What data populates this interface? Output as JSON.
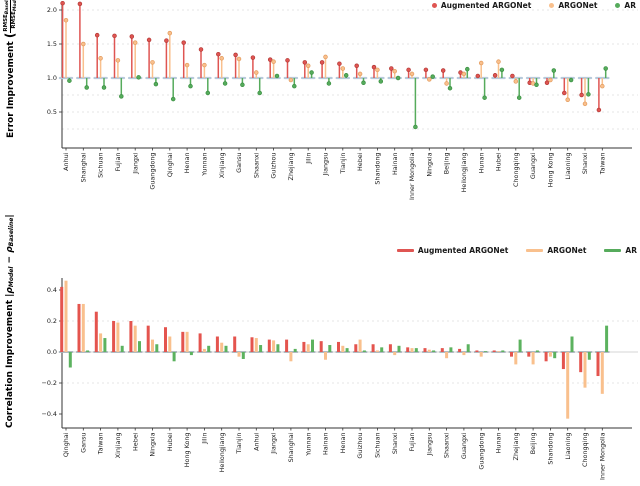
{
  "legend": {
    "items": [
      {
        "label": "Augmented ARGONet",
        "color": "#df5552",
        "edge": "#b23835"
      },
      {
        "label": "ARGONet",
        "color": "#f9c08d",
        "edge": "#e2995b"
      },
      {
        "label": "AR",
        "color": "#56ab5c",
        "edge": "#398f40"
      }
    ]
  },
  "axes": {
    "top": {
      "ylabel_main": "Error Improvement",
      "frac_num": "RMSE",
      "frac_num_sub": "Baseline",
      "frac_den": "RMSE",
      "frac_den_sub": "Model",
      "paren_open": "(",
      "paren_close": ")"
    },
    "bottom": {
      "ylabel_main": "Correlation Improvement",
      "f1": "|ρ",
      "s1": "Model",
      "f2": " − ρ",
      "s2": "Baseline",
      "f3": "|"
    }
  },
  "chart_data": [
    {
      "type": "lollipop",
      "title": "",
      "ylabel": "Error Improvement (RMSE_Baseline / RMSE_Model)",
      "baseline": 1.0,
      "ylim": [
        0,
        2.15
      ],
      "yticks": [
        0.5,
        1.0,
        1.5,
        2.0
      ],
      "gridline_values": [
        2.0,
        1.5,
        0.75,
        0.5,
        0.25
      ],
      "grid": true,
      "legend_position": "top-right",
      "categories": [
        "Anhui",
        "Shanghai",
        "Sichuan",
        "Fujian",
        "Jiangxi",
        "Guangdong",
        "Qinghai",
        "Henan",
        "Yunnan",
        "Xinjiang",
        "Gansu",
        "Shaanxi",
        "Guizhou",
        "Zhejiang",
        "Jilin",
        "Jiangsu",
        "Tianjin",
        "Hebei",
        "Shandong",
        "Hainan",
        "Inner Mongolia",
        "Ningxia",
        "Beijing",
        "Heilongjiang",
        "Hunan",
        "Hubei",
        "Chongqing",
        "Guangxi",
        "Hong Kong",
        "Liaoning",
        "Shanxi",
        "Taiwan"
      ],
      "series": [
        {
          "name": "Augmented ARGONet",
          "color": "#df5552",
          "edge": "#b23835",
          "values": [
            2.1,
            2.09,
            1.63,
            1.62,
            1.61,
            1.56,
            1.55,
            1.52,
            1.42,
            1.35,
            1.34,
            1.3,
            1.27,
            1.26,
            1.23,
            1.23,
            1.21,
            1.18,
            1.16,
            1.14,
            1.12,
            1.12,
            1.11,
            1.08,
            1.03,
            1.04,
            1.03,
            0.93,
            0.93,
            0.78,
            0.75,
            0.53
          ]
        },
        {
          "name": "ARGONet",
          "color": "#f9c08d",
          "edge": "#e2995b",
          "values": [
            1.85,
            1.5,
            1.29,
            1.26,
            1.52,
            1.23,
            1.66,
            1.19,
            1.19,
            1.29,
            1.28,
            1.08,
            1.24,
            0.97,
            1.18,
            1.31,
            1.14,
            1.06,
            1.12,
            1.1,
            1.06,
            0.98,
            0.92,
            1.06,
            1.22,
            1.24,
            0.95,
            0.92,
            0.97,
            0.68,
            0.62,
            0.88
          ]
        },
        {
          "name": "AR",
          "color": "#56ab5c",
          "edge": "#398f40",
          "values": [
            0.96,
            0.86,
            0.86,
            0.73,
            1.01,
            0.91,
            0.69,
            0.88,
            0.78,
            0.92,
            0.9,
            0.78,
            1.03,
            0.88,
            1.08,
            0.92,
            1.04,
            0.93,
            0.95,
            1.0,
            0.28,
            1.02,
            0.85,
            1.13,
            0.71,
            1.12,
            0.71,
            0.9,
            1.11,
            0.97,
            0.76,
            1.14
          ]
        }
      ]
    },
    {
      "type": "bar",
      "title": "",
      "ylabel": "Correlation Improvement |ρModel − ρBaseline|",
      "baseline": 0.0,
      "ylim": [
        -0.49,
        0.53
      ],
      "yticks": [
        -0.4,
        -0.2,
        0.0,
        0.2,
        0.4
      ],
      "gridline_values": [
        0.2,
        -0.2
      ],
      "grid": true,
      "legend_position": "top-right",
      "categories": [
        "Qinghai",
        "Gansu",
        "Taiwan",
        "Xinjiang",
        "Hebei",
        "Ningxia",
        "Hubei",
        "Hong Kong",
        "Jilin",
        "Heilongjiang",
        "Tianjin",
        "Anhui",
        "Jiangxi",
        "Shanghai",
        "Yunnan",
        "Hainan",
        "Henan",
        "Guizhou",
        "Sichuan",
        "Shanxi",
        "Fujian",
        "Jiangsu",
        "Shaanxi",
        "Guangxi",
        "Guangdong",
        "Hunan",
        "Zhejiang",
        "Beijing",
        "Shandong",
        "Liaoning",
        "Chongqing",
        "Inner Mongolia"
      ],
      "series": [
        {
          "name": "Augmented ARGONet",
          "color": "#e4544e",
          "values": [
            0.42,
            0.31,
            0.26,
            0.2,
            0.2,
            0.17,
            0.16,
            0.13,
            0.12,
            0.1,
            0.1,
            0.095,
            0.08,
            0.08,
            0.065,
            0.07,
            0.065,
            0.05,
            0.05,
            0.05,
            0.03,
            0.025,
            0.025,
            0.02,
            0.01,
            0.01,
            -0.03,
            -0.03,
            -0.06,
            -0.11,
            -0.13,
            -0.155
          ]
        },
        {
          "name": "ARGONet",
          "color": "#f9c08d",
          "values": [
            0.46,
            0.31,
            0.12,
            0.19,
            0.17,
            0.08,
            0.1,
            0.13,
            0.02,
            0.06,
            -0.03,
            0.09,
            0.075,
            -0.06,
            0.05,
            -0.05,
            0.04,
            0.08,
            0.01,
            -0.02,
            0.025,
            0.015,
            -0.04,
            -0.02,
            -0.03,
            0.005,
            -0.08,
            -0.08,
            -0.03,
            -0.43,
            -0.23,
            -0.27
          ]
        },
        {
          "name": "AR",
          "color": "#5cb25f",
          "values": [
            -0.1,
            0.01,
            0.09,
            0.04,
            0.07,
            0.05,
            -0.06,
            -0.02,
            0.04,
            0.04,
            -0.045,
            0.045,
            0.05,
            0.02,
            0.08,
            0.045,
            0.025,
            0.01,
            0.03,
            0.04,
            0.025,
            0.01,
            0.03,
            0.05,
            0.005,
            0.01,
            0.08,
            0.01,
            -0.04,
            0.1,
            -0.05,
            0.17
          ]
        }
      ]
    }
  ]
}
